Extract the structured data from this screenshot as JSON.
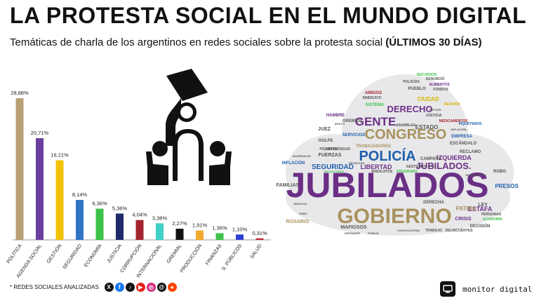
{
  "header": {
    "title": "LA PROTESTA SOCIAL EN EL MUNDO DIGITAL",
    "subtitle_text": "Temáticas de charla de los argentinos en redes sociales sobre la protesta social",
    "subtitle_bold": "(ÚLTIMOS 30 DÍAS)"
  },
  "chart_data": {
    "type": "bar",
    "categories": [
      "POLÍTICA",
      "AGENDA SOCIAL",
      "GESTIÓN",
      "SEGURIDAD",
      "ECONOMÍA",
      "JUSTICIA",
      "CORRUPCIÓN",
      "INTERNACIONAL",
      "GREMIAL",
      "PRODUCCIÓN",
      "FINANZAS",
      "S. PÚBLICOS",
      "SALUD"
    ],
    "values": [
      28.86,
      20.71,
      16.21,
      8.14,
      6.36,
      5.36,
      4.04,
      3.38,
      2.27,
      1.91,
      1.36,
      1.1,
      0.31
    ],
    "value_labels": [
      "28,86%",
      "20,71%",
      "16,21%",
      "8,14%",
      "6,36%",
      "5,36%",
      "4,04%",
      "3,38%",
      "2,27%",
      "1,91%",
      "1,36%",
      "1,10%",
      "0,31%"
    ],
    "colors": [
      "#b89f75",
      "#6b3fa0",
      "#f2c200",
      "#2f73c4",
      "#3cc34a",
      "#1f2a6b",
      "#a3242e",
      "#3fd0c8",
      "#111111",
      "#f2a92e",
      "#3cc34a",
      "#2f3fd6",
      "#c4232b"
    ],
    "ylim": [
      0,
      30
    ],
    "grid": false,
    "legend": "none"
  },
  "wordcloud": {
    "words": [
      {
        "text": "JUBILADOS",
        "color": "#6b2f86",
        "size": 50
      },
      {
        "text": "GOBIERNO",
        "color": "#a8925f",
        "size": 30
      },
      {
        "text": "POLICÍA",
        "color": "#1f5fad",
        "size": 20
      },
      {
        "text": "CONGRESO",
        "color": "#a8925f",
        "size": 20
      },
      {
        "text": "GENTE",
        "color": "#6b2f86",
        "size": 17
      },
      {
        "text": "DERECHO",
        "color": "#6b2f86",
        "size": 13
      },
      {
        "text": "JUBILADOS.",
        "color": "#6b2f86",
        "size": 13
      },
      {
        "text": "SEGURIDAD",
        "color": "#1f5fad",
        "size": 10
      },
      {
        "text": "LIBERTAD",
        "color": "#6b2f86",
        "size": 9
      },
      {
        "text": "IZQUIERDA",
        "color": "#6b2f86",
        "size": 9
      },
      {
        "text": "ESTAFA",
        "color": "#6b2f86",
        "size": 9
      },
      {
        "text": "PRESOS",
        "color": "#1f5fad",
        "size": 8
      },
      {
        "text": "CIUDAD",
        "color": "#d6b400",
        "size": 8
      },
      {
        "text": "ESTADO",
        "color": "#555555",
        "size": 8
      },
      {
        "text": "FAMILIAS",
        "color": "#555555",
        "size": 7
      },
      {
        "text": "PATRIA",
        "color": "#a8925f",
        "size": 8
      },
      {
        "text": "CRISIS",
        "color": "#6b2f86",
        "size": 7
      },
      {
        "text": "ROSARIO",
        "color": "#a8925f",
        "size": 7
      },
      {
        "text": "MAFIOSOS",
        "color": "#555555",
        "size": 7
      },
      {
        "text": "FUERZAS",
        "color": "#555555",
        "size": 7
      },
      {
        "text": "INFLACIÓN",
        "color": "#1f5fad",
        "size": 6
      },
      {
        "text": "JUEZ",
        "color": "#555555",
        "size": 7
      },
      {
        "text": "SINDICATOS",
        "color": "#555555",
        "size": 5
      },
      {
        "text": "PROGRAMA",
        "color": "#3cc34a",
        "size": 5
      },
      {
        "text": "TRABAJADORES",
        "color": "#a8925f",
        "size": 6
      },
      {
        "text": "SERVICIOS",
        "color": "#1f5fad",
        "size": 6
      },
      {
        "text": "GREMIOS",
        "color": "#555555",
        "size": 6
      },
      {
        "text": "HAMBRE",
        "color": "#6b2f86",
        "size": 6
      },
      {
        "text": "AMIGOS",
        "color": "#a3242e",
        "size": 6
      },
      {
        "text": "SINDICATO",
        "color": "#555555",
        "size": 5
      },
      {
        "text": "SISTEMA",
        "color": "#3cc34a",
        "size": 6
      },
      {
        "text": "PUEBLO",
        "color": "#555555",
        "size": 6
      },
      {
        "text": "RECURSOS",
        "color": "#3cc34a",
        "size": 5
      },
      {
        "text": "ALIMENTOS",
        "color": "#6b2f86",
        "size": 5
      },
      {
        "text": "REUNIÓN",
        "color": "#d6b400",
        "size": 5
      },
      {
        "text": "PIQUETEROS",
        "color": "#1f5fad",
        "size": 5
      },
      {
        "text": "EMPRESA",
        "color": "#1f5fad",
        "size": 6
      },
      {
        "text": "ESCÁNDALO",
        "color": "#555555",
        "size": 6
      },
      {
        "text": "RECLAMO",
        "color": "#555555",
        "size": 6
      },
      {
        "text": "CAMPAÑA",
        "color": "#555555",
        "size": 6
      },
      {
        "text": "ROBO",
        "color": "#555555",
        "size": 6
      },
      {
        "text": "DERECHA",
        "color": "#555555",
        "size": 6
      },
      {
        "text": "LEY",
        "color": "#555555",
        "size": 7
      },
      {
        "text": "PERSONAS",
        "color": "#555555",
        "size": 5
      },
      {
        "text": "ECONOMÍA",
        "color": "#3cc34a",
        "size": 5
      },
      {
        "text": "DECISIÓN",
        "color": "#555555",
        "size": 6
      },
      {
        "text": "GOLPE",
        "color": "#555555",
        "size": 6
      },
      {
        "text": "PIQUETES",
        "color": "#555555",
        "size": 5
      },
      {
        "text": "DELINCUENTES",
        "color": "#555555",
        "size": 5
      },
      {
        "text": "TRABAJO",
        "color": "#555555",
        "size": 5
      },
      {
        "text": "ASAMBLEA",
        "color": "#555555",
        "size": 5
      },
      {
        "text": "JUSTICIA",
        "color": "#555555",
        "size": 5
      },
      {
        "text": "POLICÍAS",
        "color": "#555555",
        "size": 5
      },
      {
        "text": "FONDOS",
        "color": "#555555",
        "size": 5
      },
      {
        "text": "DENUNCIÓ",
        "color": "#555555",
        "size": 5
      },
      {
        "text": "MEDICAMENTOS",
        "color": "#a3242e",
        "size": 5
      },
      {
        "text": "UNIVERSIDAD",
        "color": "#555555",
        "size": 5
      },
      {
        "text": "MATERIALES",
        "color": "#555555",
        "size": 4
      },
      {
        "text": "PROMOTORES",
        "color": "#3cc34a",
        "size": 4
      },
      {
        "text": "OPOSICIÓN",
        "color": "#555555",
        "size": 4
      },
      {
        "text": "GESTIÓN",
        "color": "#555555",
        "size": 5
      },
      {
        "text": "JUBILADAS",
        "color": "#555555",
        "size": 4
      },
      {
        "text": "MOVILIZACIÓN",
        "color": "#555555",
        "size": 4
      },
      {
        "text": "INFLACIÓN,",
        "color": "#555555",
        "size": 4
      },
      {
        "text": "DEFENDER",
        "color": "#555555",
        "size": 4
      },
      {
        "text": "CONVOCATORIA",
        "color": "#555555",
        "size": 4
      },
      {
        "text": "SECTOR",
        "color": "#555555",
        "size": 4
      },
      {
        "text": "APOYO",
        "color": "#555555",
        "size": 4
      },
      {
        "text": "FAMILIA",
        "color": "#555555",
        "size": 4
      },
      {
        "text": "PARO",
        "color": "#555555",
        "size": 4
      },
      {
        "text": "NEGOCIO",
        "color": "#555555",
        "size": 4
      }
    ]
  },
  "footer": {
    "networks_label": "* REDES SOCIALES ANALIZADAS",
    "icons": [
      {
        "name": "x-icon",
        "glyph": "X",
        "color": "#111111"
      },
      {
        "name": "facebook-icon",
        "glyph": "f",
        "color": "#1877f2"
      },
      {
        "name": "tiktok-icon",
        "glyph": "♪",
        "color": "#111111"
      },
      {
        "name": "youtube-icon",
        "glyph": "▶",
        "color": "#e62117"
      },
      {
        "name": "instagram-icon",
        "glyph": "◎",
        "color": "#d6297a"
      },
      {
        "name": "threads-icon",
        "glyph": "@",
        "color": "#111111"
      },
      {
        "name": "reddit-icon",
        "glyph": "●",
        "color": "#ff4500"
      }
    ]
  },
  "brand": {
    "name": "monitor digital"
  }
}
